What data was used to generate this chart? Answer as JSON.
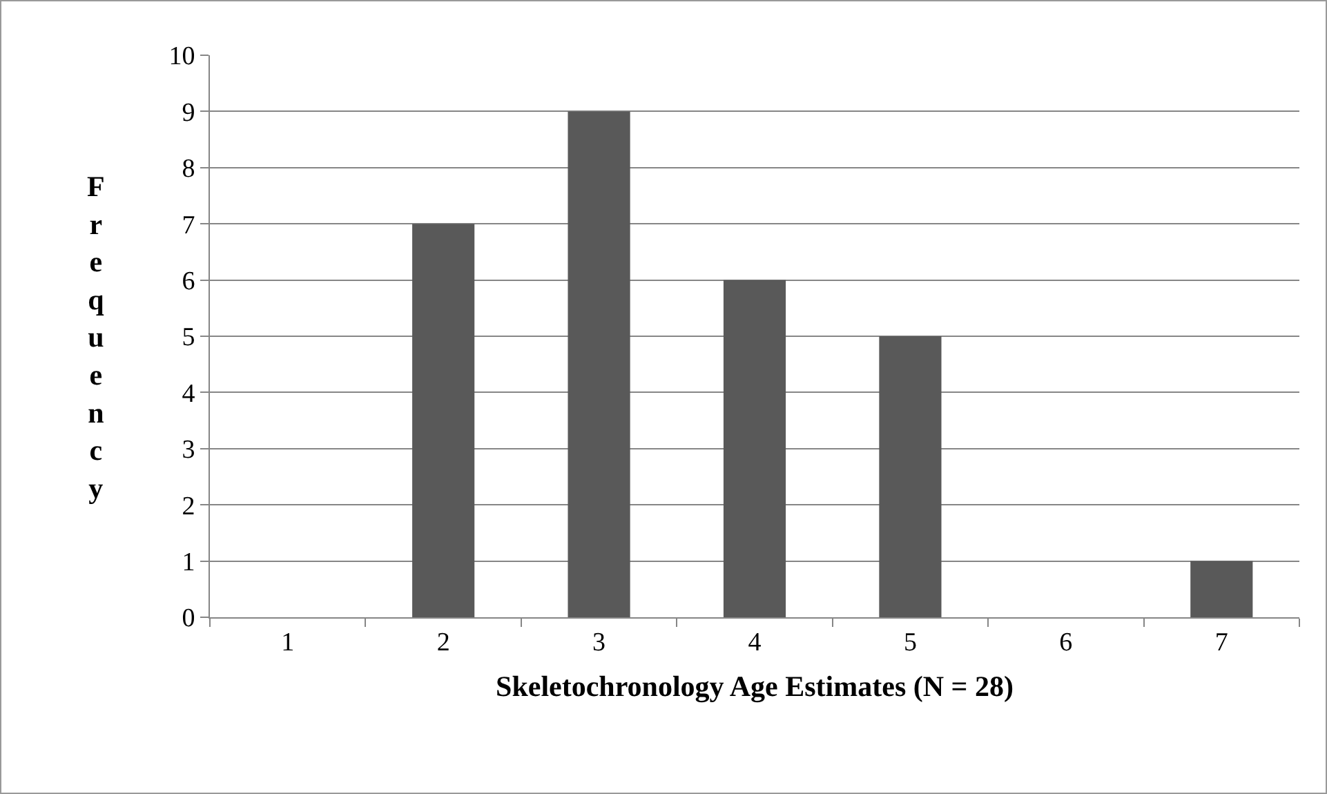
{
  "chart_data": {
    "type": "bar",
    "xlabel": "Skeletochronology Age Estimates (N = 28)",
    "ylabel": "Frequency",
    "categories": [
      "1",
      "2",
      "3",
      "4",
      "5",
      "6",
      "7"
    ],
    "values": [
      0,
      7,
      9,
      6,
      5,
      0,
      1
    ],
    "color": "#595959",
    "ylim": [
      0,
      10
    ],
    "yticks": [
      0,
      1,
      2,
      3,
      4,
      5,
      6,
      7,
      8,
      9,
      10
    ],
    "grid": "y"
  }
}
